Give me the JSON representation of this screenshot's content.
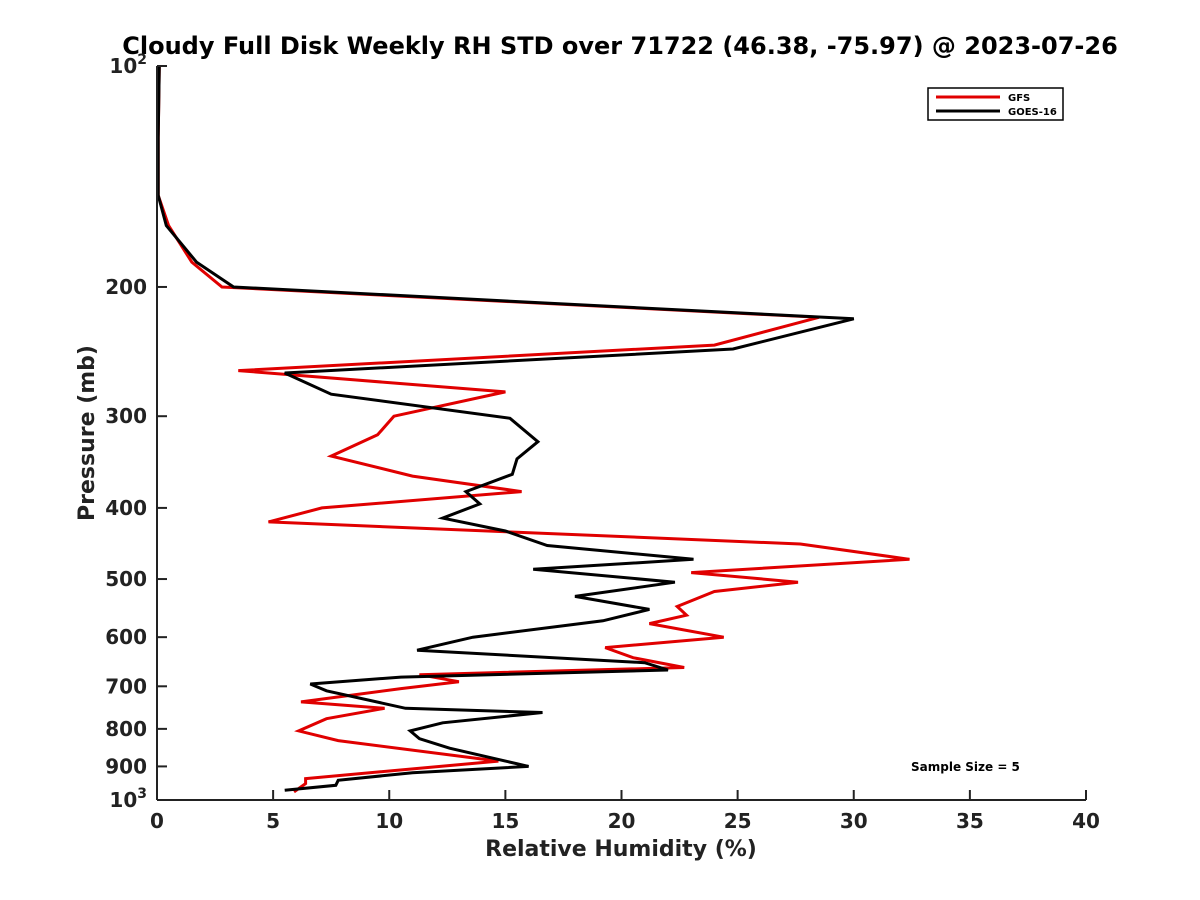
{
  "chart_data": {
    "type": "line",
    "title": "Cloudy Full Disk Weekly RH STD over 71722 (46.38, -75.97) @ 2023-07-26",
    "xlabel": "Relative Humidity (%)",
    "ylabel": "Pressure (mb)",
    "xlim": [
      0,
      40
    ],
    "ylim": [
      100,
      1000
    ],
    "yscale": "log",
    "y_reversed": true,
    "grid": false,
    "legend_position": "top-right",
    "x_ticks": [
      {
        "value": 0,
        "label": "0"
      },
      {
        "value": 5,
        "label": "5"
      },
      {
        "value": 10,
        "label": "10"
      },
      {
        "value": 15,
        "label": "15"
      },
      {
        "value": 20,
        "label": "20"
      },
      {
        "value": 25,
        "label": "25"
      },
      {
        "value": 30,
        "label": "30"
      },
      {
        "value": 35,
        "label": "35"
      },
      {
        "value": 40,
        "label": "40"
      }
    ],
    "y_ticks": [
      {
        "value": 100,
        "base": "10",
        "exp": "2"
      },
      {
        "value": 200,
        "label": "200"
      },
      {
        "value": 300,
        "label": "300"
      },
      {
        "value": 400,
        "label": "400"
      },
      {
        "value": 500,
        "label": "500"
      },
      {
        "value": 600,
        "label": "600"
      },
      {
        "value": 700,
        "label": "700"
      },
      {
        "value": 800,
        "label": "800"
      },
      {
        "value": 900,
        "label": "900"
      },
      {
        "value": 1000,
        "base": "10",
        "exp": "3"
      }
    ],
    "annotation": "Sample Size = 5",
    "series": [
      {
        "name": "GFS",
        "color": "#e00000",
        "points": [
          [
            0.1,
            100
          ],
          [
            0.05,
            125
          ],
          [
            0.05,
            150
          ],
          [
            0.5,
            165
          ],
          [
            1.5,
            185
          ],
          [
            2.8,
            200
          ],
          [
            28.5,
            220
          ],
          [
            24,
            240
          ],
          [
            3.5,
            260
          ],
          [
            15,
            278
          ],
          [
            10.2,
            300
          ],
          [
            9.5,
            318
          ],
          [
            7.5,
            340
          ],
          [
            11,
            362
          ],
          [
            15.7,
            380
          ],
          [
            7.1,
            400
          ],
          [
            4.8,
            418
          ],
          [
            27.7,
            448
          ],
          [
            32.4,
            470
          ],
          [
            23,
            490
          ],
          [
            27.6,
            505
          ],
          [
            24,
            520
          ],
          [
            22.4,
            545
          ],
          [
            22.8,
            560
          ],
          [
            21.2,
            575
          ],
          [
            24.4,
            600
          ],
          [
            19.3,
            620
          ],
          [
            20.5,
            640
          ],
          [
            22.7,
            660
          ],
          [
            11.3,
            675
          ],
          [
            13,
            690
          ],
          [
            10.5,
            705
          ],
          [
            6.2,
            735
          ],
          [
            9.8,
            750
          ],
          [
            7.3,
            775
          ],
          [
            6.1,
            805
          ],
          [
            7.8,
            830
          ],
          [
            14.7,
            885
          ],
          [
            6.4,
            935
          ],
          [
            6.4,
            950
          ],
          [
            5.9,
            975
          ]
        ]
      },
      {
        "name": "GOES-16",
        "color": "#000000",
        "points": [
          [
            0.1,
            100
          ],
          [
            0.05,
            125
          ],
          [
            0.05,
            150
          ],
          [
            0.4,
            165
          ],
          [
            1.7,
            185
          ],
          [
            3.3,
            200
          ],
          [
            30,
            221
          ],
          [
            24.8,
            243
          ],
          [
            5.5,
            262
          ],
          [
            7.5,
            280
          ],
          [
            15.2,
            302
          ],
          [
            16.4,
            325
          ],
          [
            15.5,
            343
          ],
          [
            15.3,
            360
          ],
          [
            13.3,
            380
          ],
          [
            13.9,
            395
          ],
          [
            12.3,
            413
          ],
          [
            15,
            430
          ],
          [
            16.8,
            450
          ],
          [
            23.1,
            470
          ],
          [
            16.2,
            485
          ],
          [
            22.3,
            505
          ],
          [
            18,
            528
          ],
          [
            21.2,
            550
          ],
          [
            19.2,
            570
          ],
          [
            13.6,
            600
          ],
          [
            11.2,
            625
          ],
          [
            21,
            650
          ],
          [
            22,
            665
          ],
          [
            10.5,
            680
          ],
          [
            6.6,
            695
          ],
          [
            7.3,
            710
          ],
          [
            10.7,
            750
          ],
          [
            16.6,
            760
          ],
          [
            12.3,
            785
          ],
          [
            10.9,
            805
          ],
          [
            11.3,
            825
          ],
          [
            12.6,
            850
          ],
          [
            16,
            900
          ],
          [
            11,
            918
          ],
          [
            7.8,
            940
          ],
          [
            7.7,
            955
          ],
          [
            5.5,
            970
          ]
        ]
      }
    ]
  }
}
